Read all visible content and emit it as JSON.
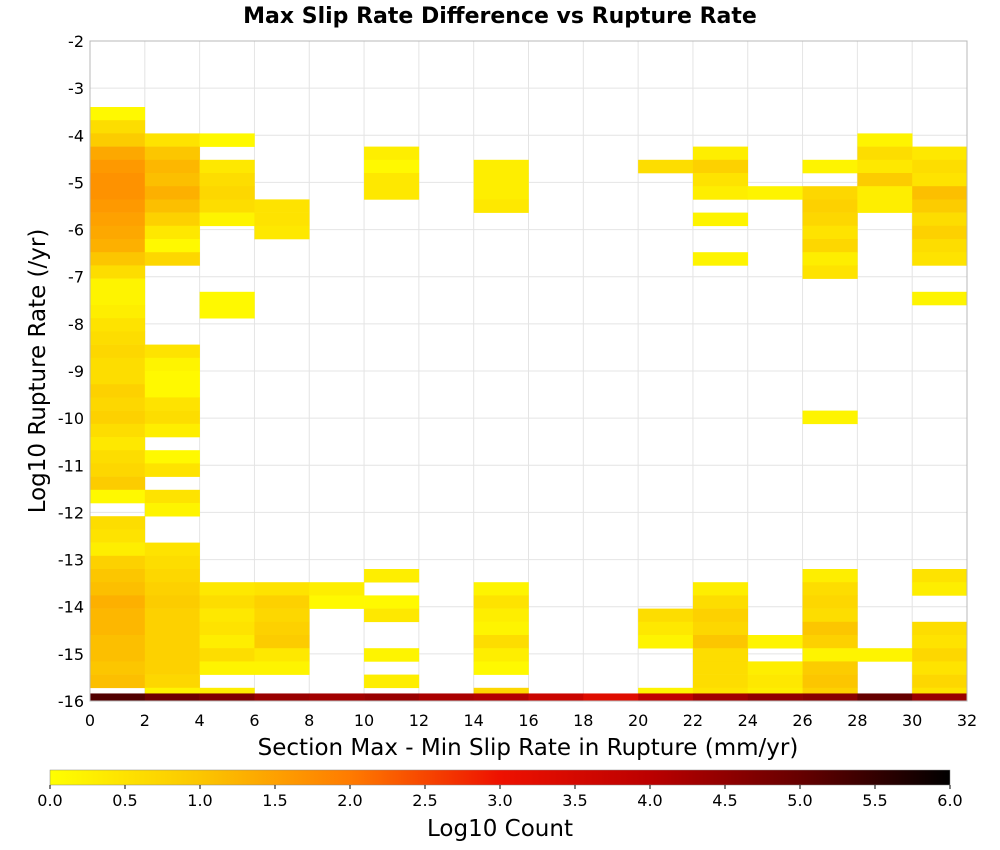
{
  "chart_data": {
    "type": "heatmap",
    "title": "Max Slip Rate Difference vs Rupture Rate",
    "xlabel": "Section Max - Min Slip Rate in Rupture (mm/yr)",
    "ylabel": "Log10 Rupture Rate (/yr)",
    "xlim": [
      0,
      32
    ],
    "ylim": [
      -16,
      -2
    ],
    "x_ticks": [
      0,
      2,
      4,
      6,
      8,
      10,
      12,
      14,
      16,
      18,
      20,
      22,
      24,
      26,
      28,
      30,
      32
    ],
    "y_ticks": [
      -16,
      -15,
      -14,
      -13,
      -12,
      -11,
      -10,
      -9,
      -8,
      -7,
      -6,
      -5,
      -4,
      -3,
      -2
    ],
    "x_bin_width": 2,
    "y_bin_height": 0.28,
    "grid": true,
    "colorbar": {
      "label": "Log10 Count",
      "range": [
        0,
        6
      ],
      "ticks": [
        "0.0",
        "0.5",
        "1.0",
        "1.5",
        "2.0",
        "2.5",
        "3.0",
        "3.5",
        "4.0",
        "4.5",
        "5.0",
        "5.5",
        "6.0"
      ],
      "stops": [
        [
          0.0,
          "#ffff00"
        ],
        [
          1.0,
          "#fcc600"
        ],
        [
          2.0,
          "#ff7b00"
        ],
        [
          3.0,
          "#ee1100"
        ],
        [
          4.0,
          "#bb0000"
        ],
        [
          5.0,
          "#660000"
        ],
        [
          6.0,
          "#000000"
        ]
      ]
    },
    "note_cells": "each cell: [x_bin_start, y_bin_bottom, log10_count]",
    "cells": [
      [
        0,
        -3.68,
        0.1
      ],
      [
        0,
        -3.96,
        0.6
      ],
      [
        0,
        -4.24,
        0.9
      ],
      [
        0,
        -4.52,
        1.4
      ],
      [
        0,
        -4.8,
        1.6
      ],
      [
        0,
        -5.08,
        1.7
      ],
      [
        0,
        -5.36,
        1.7
      ],
      [
        0,
        -5.64,
        1.6
      ],
      [
        0,
        -5.92,
        1.5
      ],
      [
        0,
        -6.2,
        1.4
      ],
      [
        0,
        -6.48,
        1.3
      ],
      [
        0,
        -6.76,
        1.0
      ],
      [
        0,
        -7.04,
        0.6
      ],
      [
        0,
        -7.32,
        0.2
      ],
      [
        0,
        -7.6,
        0.2
      ],
      [
        0,
        -7.88,
        0.3
      ],
      [
        0,
        -8.16,
        0.5
      ],
      [
        0,
        -8.44,
        0.6
      ],
      [
        0,
        -8.72,
        0.7
      ],
      [
        0,
        -9.0,
        0.6
      ],
      [
        0,
        -9.28,
        0.6
      ],
      [
        0,
        -9.56,
        0.8
      ],
      [
        0,
        -9.84,
        0.7
      ],
      [
        0,
        -10.12,
        0.8
      ],
      [
        0,
        -10.4,
        0.6
      ],
      [
        0,
        -10.68,
        0.4
      ],
      [
        0,
        -10.96,
        0.6
      ],
      [
        0,
        -11.24,
        0.7
      ],
      [
        0,
        -11.52,
        0.9
      ],
      [
        0,
        -11.8,
        0.1
      ],
      [
        0,
        -12.36,
        0.6
      ],
      [
        0,
        -12.64,
        0.5
      ],
      [
        0,
        -12.92,
        0.3
      ],
      [
        0,
        -13.2,
        0.8
      ],
      [
        0,
        -13.48,
        1.0
      ],
      [
        0,
        -13.76,
        1.1
      ],
      [
        0,
        -14.04,
        1.3
      ],
      [
        0,
        -14.32,
        1.2
      ],
      [
        0,
        -14.6,
        1.2
      ],
      [
        0,
        -14.88,
        1.1
      ],
      [
        0,
        -15.16,
        1.1
      ],
      [
        0,
        -15.44,
        1.0
      ],
      [
        0,
        -15.72,
        1.1
      ],
      [
        2,
        -4.24,
        0.5
      ],
      [
        2,
        -4.52,
        1.0
      ],
      [
        2,
        -4.8,
        1.2
      ],
      [
        2,
        -5.08,
        1.1
      ],
      [
        2,
        -5.36,
        1.3
      ],
      [
        2,
        -5.64,
        1.1
      ],
      [
        2,
        -5.92,
        0.8
      ],
      [
        2,
        -6.2,
        0.4
      ],
      [
        2,
        -6.48,
        0.1
      ],
      [
        2,
        -6.76,
        0.7
      ],
      [
        2,
        -8.72,
        0.5
      ],
      [
        2,
        -9.0,
        0.2
      ],
      [
        2,
        -9.28,
        0.1
      ],
      [
        2,
        -9.56,
        0.1
      ],
      [
        2,
        -9.84,
        0.5
      ],
      [
        2,
        -10.12,
        0.6
      ],
      [
        2,
        -10.4,
        0.3
      ],
      [
        2,
        -10.96,
        0.1
      ],
      [
        2,
        -11.24,
        0.5
      ],
      [
        2,
        -11.8,
        0.5
      ],
      [
        2,
        -12.08,
        0.2
      ],
      [
        2,
        -12.92,
        0.5
      ],
      [
        2,
        -13.2,
        0.6
      ],
      [
        2,
        -13.48,
        0.7
      ],
      [
        2,
        -13.76,
        0.8
      ],
      [
        2,
        -14.04,
        0.9
      ],
      [
        2,
        -14.32,
        0.8
      ],
      [
        2,
        -14.6,
        0.8
      ],
      [
        2,
        -14.88,
        0.8
      ],
      [
        2,
        -15.16,
        0.8
      ],
      [
        2,
        -15.44,
        0.8
      ],
      [
        2,
        -15.72,
        0.7
      ],
      [
        2,
        -16.0,
        0.2
      ],
      [
        4,
        -4.24,
        0.1
      ],
      [
        4,
        -4.8,
        0.4
      ],
      [
        4,
        -5.08,
        0.6
      ],
      [
        4,
        -5.36,
        0.7
      ],
      [
        4,
        -5.64,
        0.6
      ],
      [
        4,
        -5.92,
        0.2
      ],
      [
        4,
        -7.6,
        0.1
      ],
      [
        4,
        -7.88,
        0.1
      ],
      [
        4,
        -13.76,
        0.4
      ],
      [
        4,
        -14.04,
        0.6
      ],
      [
        4,
        -14.32,
        0.4
      ],
      [
        4,
        -14.6,
        0.5
      ],
      [
        4,
        -14.88,
        0.3
      ],
      [
        4,
        -15.16,
        0.6
      ],
      [
        4,
        -15.44,
        0.2
      ],
      [
        4,
        -16.0,
        0.3
      ],
      [
        6,
        -5.64,
        0.5
      ],
      [
        6,
        -5.92,
        0.5
      ],
      [
        6,
        -6.2,
        0.4
      ],
      [
        6,
        -13.76,
        0.5
      ],
      [
        6,
        -14.04,
        0.8
      ],
      [
        6,
        -14.32,
        0.7
      ],
      [
        6,
        -14.6,
        0.8
      ],
      [
        6,
        -14.88,
        0.9
      ],
      [
        6,
        -15.16,
        0.4
      ],
      [
        6,
        -15.44,
        0.2
      ],
      [
        8,
        -13.76,
        0.3
      ],
      [
        8,
        -14.04,
        0.1
      ],
      [
        10,
        -4.52,
        0.3
      ],
      [
        10,
        -4.8,
        0.1
      ],
      [
        10,
        -5.08,
        0.4
      ],
      [
        10,
        -5.36,
        0.4
      ],
      [
        10,
        -13.48,
        0.3
      ],
      [
        10,
        -14.04,
        0.1
      ],
      [
        10,
        -14.32,
        0.4
      ],
      [
        10,
        -15.16,
        0.2
      ],
      [
        10,
        -15.72,
        0.3
      ],
      [
        14,
        -4.8,
        0.3
      ],
      [
        14,
        -5.08,
        0.3
      ],
      [
        14,
        -5.36,
        0.3
      ],
      [
        14,
        -5.64,
        0.4
      ],
      [
        14,
        -13.76,
        0.2
      ],
      [
        14,
        -14.04,
        0.5
      ],
      [
        14,
        -14.32,
        0.3
      ],
      [
        14,
        -14.6,
        0.2
      ],
      [
        14,
        -14.88,
        0.6
      ],
      [
        14,
        -15.16,
        0.3
      ],
      [
        14,
        -15.44,
        0.1
      ],
      [
        14,
        -16.0,
        0.7
      ],
      [
        20,
        -4.8,
        0.6
      ],
      [
        20,
        -14.32,
        0.6
      ],
      [
        20,
        -14.6,
        0.4
      ],
      [
        20,
        -14.88,
        0.2
      ],
      [
        20,
        -16.0,
        0.2
      ],
      [
        22,
        -4.52,
        0.3
      ],
      [
        22,
        -4.8,
        0.8
      ],
      [
        22,
        -5.08,
        0.5
      ],
      [
        22,
        -5.36,
        0.3
      ],
      [
        22,
        -5.92,
        0.2
      ],
      [
        22,
        -6.76,
        0.2
      ],
      [
        22,
        -13.76,
        0.3
      ],
      [
        22,
        -14.04,
        0.6
      ],
      [
        22,
        -14.32,
        0.8
      ],
      [
        22,
        -14.6,
        0.7
      ],
      [
        22,
        -14.88,
        1.0
      ],
      [
        22,
        -15.16,
        0.6
      ],
      [
        22,
        -15.44,
        0.6
      ],
      [
        22,
        -15.72,
        0.6
      ],
      [
        22,
        -16.0,
        0.5
      ],
      [
        24,
        -5.36,
        0.2
      ],
      [
        24,
        -14.88,
        0.2
      ],
      [
        24,
        -15.44,
        0.3
      ],
      [
        24,
        -15.72,
        0.4
      ],
      [
        24,
        -16.0,
        0.3
      ],
      [
        26,
        -4.8,
        0.2
      ],
      [
        26,
        -5.36,
        0.7
      ],
      [
        26,
        -5.64,
        0.8
      ],
      [
        26,
        -5.92,
        0.7
      ],
      [
        26,
        -6.2,
        0.5
      ],
      [
        26,
        -6.48,
        0.7
      ],
      [
        26,
        -6.76,
        0.3
      ],
      [
        26,
        -7.04,
        0.5
      ],
      [
        26,
        -10.12,
        0.2
      ],
      [
        26,
        -13.48,
        0.3
      ],
      [
        26,
        -13.76,
        0.6
      ],
      [
        26,
        -14.04,
        0.7
      ],
      [
        26,
        -14.32,
        0.6
      ],
      [
        26,
        -14.6,
        1.0
      ],
      [
        26,
        -14.88,
        0.8
      ],
      [
        26,
        -15.16,
        0.2
      ],
      [
        26,
        -15.44,
        0.9
      ],
      [
        26,
        -15.72,
        1.0
      ],
      [
        26,
        -16.0,
        0.8
      ],
      [
        28,
        -4.24,
        0.2
      ],
      [
        28,
        -4.52,
        0.6
      ],
      [
        28,
        -4.8,
        0.4
      ],
      [
        28,
        -5.08,
        0.9
      ],
      [
        28,
        -5.36,
        0.3
      ],
      [
        28,
        -5.64,
        0.3
      ],
      [
        28,
        -15.16,
        0.2
      ],
      [
        30,
        -4.52,
        0.4
      ],
      [
        30,
        -4.8,
        0.6
      ],
      [
        30,
        -5.08,
        0.5
      ],
      [
        30,
        -5.36,
        1.1
      ],
      [
        30,
        -5.64,
        0.9
      ],
      [
        30,
        -5.92,
        0.6
      ],
      [
        30,
        -6.2,
        0.8
      ],
      [
        30,
        -6.48,
        0.6
      ],
      [
        30,
        -6.76,
        0.5
      ],
      [
        30,
        -7.6,
        0.2
      ],
      [
        30,
        -13.48,
        0.5
      ],
      [
        30,
        -13.76,
        0.3
      ],
      [
        30,
        -14.6,
        0.6
      ],
      [
        30,
        -14.88,
        0.5
      ],
      [
        30,
        -15.16,
        0.7
      ],
      [
        30,
        -15.44,
        0.5
      ],
      [
        30,
        -15.72,
        0.7
      ],
      [
        30,
        -16.0,
        0.5
      ]
    ],
    "bottom_row": {
      "y_bin_bottom": -16.12,
      "values": [
        5.2,
        4.9,
        4.7,
        4.4,
        4.3,
        4.4,
        4.2,
        4.1,
        3.7,
        3.3,
        3.9,
        4.3,
        4.5,
        4.6,
        5.0,
        4.4
      ]
    }
  }
}
